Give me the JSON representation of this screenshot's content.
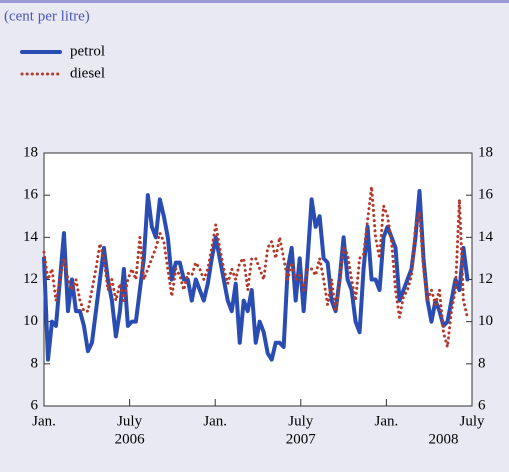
{
  "chart_data": {
    "type": "line",
    "subtitle": "(cent per litre)",
    "x": [
      0,
      0.28,
      0.56,
      0.84,
      1.12,
      1.4,
      1.68,
      1.96,
      2.24,
      2.52,
      2.8,
      3.08,
      3.36,
      3.64,
      3.92,
      4.2,
      4.48,
      4.76,
      5.04,
      5.32,
      5.6,
      5.88,
      6.16,
      6.44,
      6.72,
      7,
      7.28,
      7.56,
      7.84,
      8.12,
      8.4,
      8.68,
      8.96,
      9.24,
      9.52,
      9.8,
      10.08,
      10.36,
      10.64,
      10.92,
      11.2,
      11.48,
      11.76,
      12.04,
      12.32,
      12.6,
      12.88,
      13.16,
      13.44,
      13.72,
      14,
      14.28,
      14.56,
      14.84,
      15.12,
      15.4,
      15.68,
      15.96,
      16.24,
      16.52,
      16.8,
      17.08,
      17.36,
      17.64,
      17.92,
      18.2,
      18.48,
      18.76,
      19.04,
      19.32,
      19.6,
      19.88,
      20.16,
      20.44,
      20.72,
      21,
      21.28,
      21.56,
      21.84,
      22.12,
      22.4,
      22.68,
      22.96,
      23.24,
      23.52,
      23.8,
      24.08,
      24.36,
      24.64,
      24.92,
      25.2,
      25.48,
      25.76,
      26.04,
      26.32,
      26.6,
      26.88,
      27.16,
      27.44,
      27.72,
      28,
      28.28,
      28.56,
      28.84,
      29.12,
      29.4,
      29.68
    ],
    "series": [
      {
        "name": "petrol",
        "color": "#2a4db3",
        "values": [
          13,
          8.2,
          10,
          9.8,
          12,
          14.2,
          10.5,
          12,
          10.5,
          10.5,
          9.8,
          8.6,
          9,
          10.5,
          12,
          13.5,
          12,
          11,
          9.3,
          10.5,
          12.5,
          9.8,
          10,
          10,
          11.5,
          13,
          16,
          14.5,
          14,
          15.8,
          15,
          14,
          12,
          12.8,
          12.8,
          12,
          12,
          11,
          12,
          11.5,
          11,
          11.8,
          13,
          14,
          13,
          12,
          11,
          10.5,
          11.8,
          9,
          11,
          10.5,
          11.5,
          9,
          10,
          9.5,
          8.5,
          8.2,
          9,
          9,
          8.8,
          12.5,
          13.5,
          11,
          13,
          10.5,
          13,
          15.8,
          14.5,
          15,
          13,
          12.8,
          11,
          10.5,
          12,
          14,
          12,
          11.5,
          10,
          9.5,
          12.5,
          14.5,
          12,
          12,
          11.5,
          14,
          14.5,
          14,
          13.5,
          11,
          11.5,
          12,
          12.5,
          14,
          16.2,
          13,
          11,
          10,
          11,
          10.5,
          9.8,
          10,
          11,
          12,
          11.5,
          13.5,
          12
        ]
      },
      {
        "name": "diesel",
        "color": "#b33a2b",
        "values": [
          13.3,
          12,
          12.5,
          11,
          12,
          13,
          12,
          11.5,
          12,
          11,
          10.5,
          10.5,
          11.5,
          12.5,
          13.7,
          13,
          11.5,
          12,
          11,
          11.8,
          11,
          12,
          12.5,
          12,
          14,
          12,
          12.5,
          13,
          13.5,
          14.2,
          13.8,
          12.5,
          11.2,
          12.5,
          12.2,
          11.5,
          12.3,
          12.2,
          12.8,
          12.5,
          12,
          12.5,
          13.5,
          14.6,
          13.5,
          12.5,
          11.8,
          12.5,
          12,
          12.8,
          13,
          11.5,
          13,
          13,
          12.5,
          12,
          13.5,
          13.8,
          13,
          14,
          13,
          12,
          12.8,
          12,
          12.2,
          11.5,
          12.5,
          12.5,
          12.2,
          13,
          12,
          10.8,
          12,
          10.5,
          11.8,
          13.5,
          13.2,
          12,
          11,
          13,
          13.2,
          14.8,
          16.4,
          14,
          13,
          15.5,
          15,
          13.8,
          11.5,
          10.2,
          11.2,
          11.5,
          12.2,
          14.5,
          15.2,
          12.5,
          11,
          11.5,
          10.8,
          11.5,
          9.5,
          8.8,
          10.5,
          11.5,
          15.8,
          11,
          10.2
        ]
      }
    ],
    "xlim": [
      0,
      30
    ],
    "xticks": [
      {
        "value": 0,
        "label": "Jan."
      },
      {
        "value": 6,
        "label": "July"
      },
      {
        "value": 12,
        "label": "Jan."
      },
      {
        "value": 18,
        "label": "July"
      },
      {
        "value": 24,
        "label": "Jan."
      },
      {
        "value": 30,
        "label": "July"
      }
    ],
    "year_labels": [
      {
        "value": 6,
        "label": "2006"
      },
      {
        "value": 18,
        "label": "2007"
      },
      {
        "value": 28,
        "label": "2008"
      }
    ],
    "ylim": [
      6,
      18
    ],
    "yticks": [
      6,
      8,
      10,
      12,
      14,
      16,
      18
    ],
    "right_axis": true
  }
}
